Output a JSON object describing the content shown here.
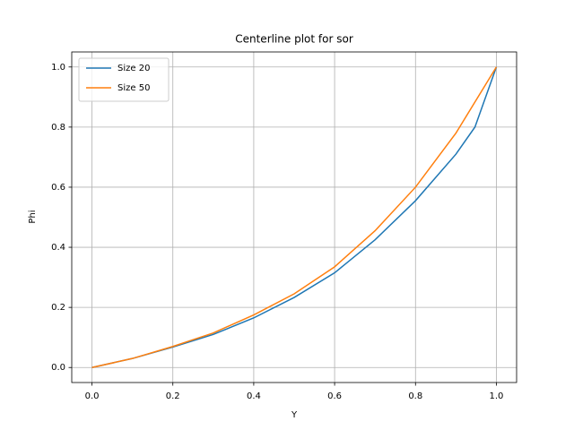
{
  "chart_data": {
    "type": "line",
    "title": "Centerline plot for sor",
    "xlabel": "Y",
    "ylabel": "Phi",
    "series": [
      {
        "name": "Size 20",
        "color": "#1f77b4",
        "x": [
          0,
          0.1,
          0.2,
          0.3,
          0.4,
          0.5,
          0.6,
          0.7,
          0.8,
          0.9,
          0.947,
          1.0
        ],
        "values": [
          0,
          0.03,
          0.068,
          0.11,
          0.165,
          0.233,
          0.315,
          0.425,
          0.555,
          0.71,
          0.8,
          1.0
        ]
      },
      {
        "name": "Size 50",
        "color": "#ff7f0e",
        "x": [
          0,
          0.1,
          0.2,
          0.3,
          0.4,
          0.5,
          0.6,
          0.7,
          0.8,
          0.9,
          1.0
        ],
        "values": [
          0,
          0.03,
          0.07,
          0.115,
          0.175,
          0.245,
          0.335,
          0.455,
          0.6,
          0.78,
          1.0
        ]
      }
    ],
    "xlim": [
      -0.05,
      1.05
    ],
    "ylim": [
      -0.05,
      1.05
    ],
    "xticks": [
      {
        "value": 0,
        "label": "0.0"
      },
      {
        "value": 0.2,
        "label": "0.2"
      },
      {
        "value": 0.4,
        "label": "0.4"
      },
      {
        "value": 0.6,
        "label": "0.6"
      },
      {
        "value": 0.8,
        "label": "0.8"
      },
      {
        "value": 1,
        "label": "1.0"
      }
    ],
    "yticks": [
      {
        "value": 0,
        "label": "0.0"
      },
      {
        "value": 0.2,
        "label": "0.2"
      },
      {
        "value": 0.4,
        "label": "0.4"
      },
      {
        "value": 0.6,
        "label": "0.6"
      },
      {
        "value": 0.8,
        "label": "0.8"
      },
      {
        "value": 1,
        "label": "1.0"
      }
    ],
    "grid": true,
    "legend": "upper left"
  }
}
